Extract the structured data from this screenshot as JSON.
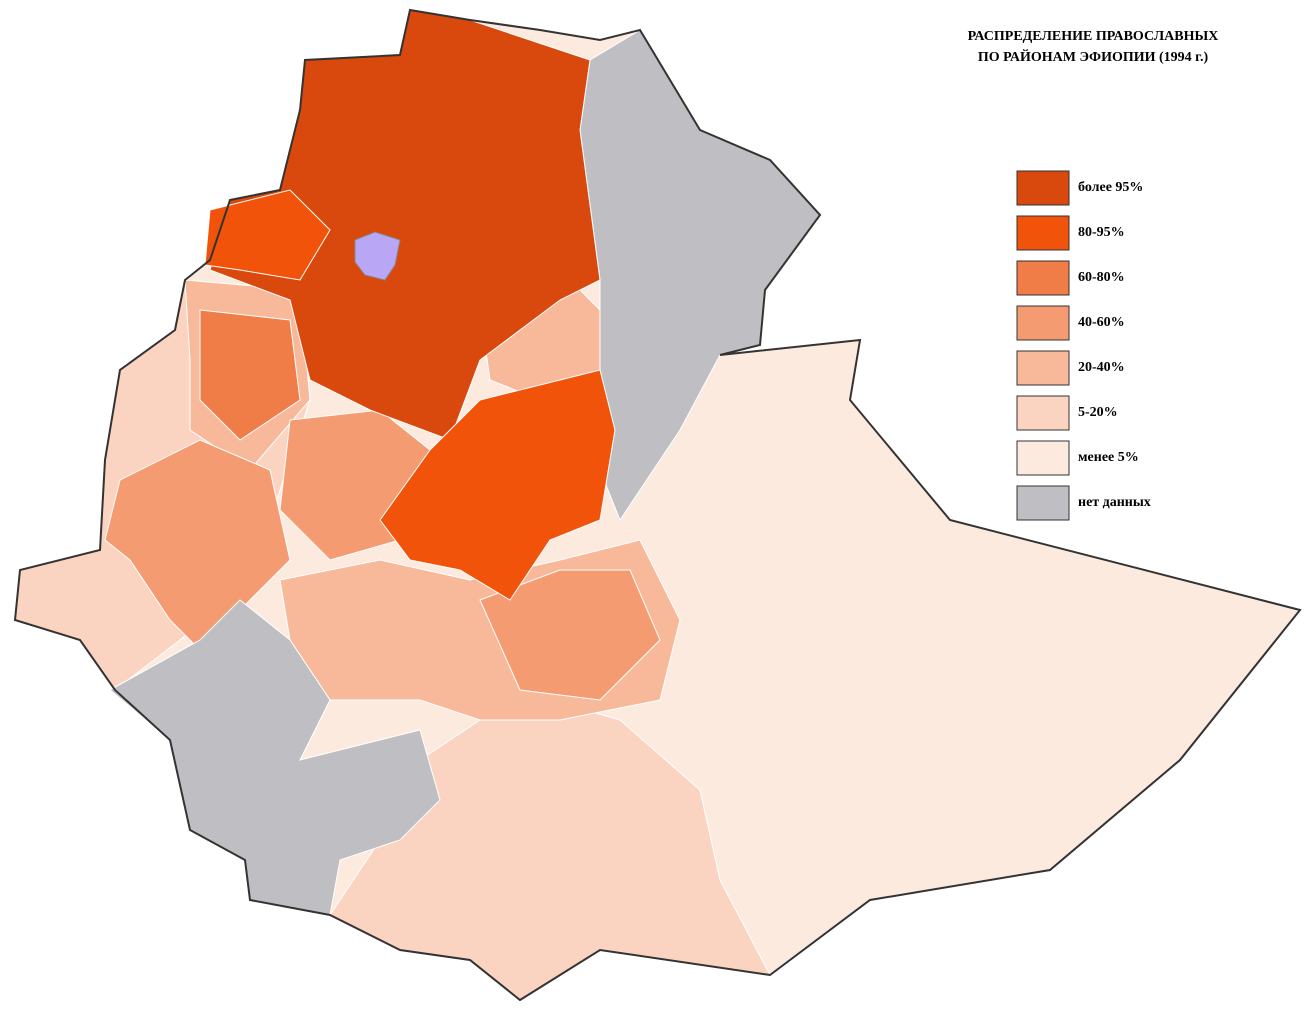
{
  "title": [
    "РАСПРЕДЕЛЕНИЕ ПРАВОСЛАВНЫХ",
    "ПО РАЙОНАМ ЭФИОПИИ (1994 г.)"
  ],
  "legend": [
    {
      "label": "более 95%",
      "color": "#d9480c"
    },
    {
      "label": "80-95%",
      "color": "#f2530b"
    },
    {
      "label": "60-80%",
      "color": "#f07c48"
    },
    {
      "label": "40-60%",
      "color": "#f59b72"
    },
    {
      "label": "20-40%",
      "color": "#f8b99a"
    },
    {
      "label": "5-20%",
      "color": "#fbd4c1"
    },
    {
      "label": "менее 5%",
      "color": "#fdeadf"
    },
    {
      "label": "нет данных",
      "color": "#bfbfc3"
    }
  ]
}
